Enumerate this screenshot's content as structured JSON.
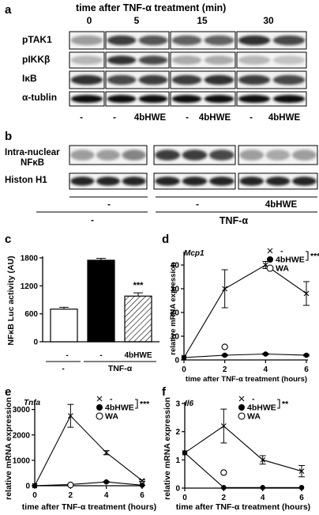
{
  "panel_a": {
    "letter": "a",
    "header": "time after TNF-α treatment (min)",
    "times": [
      "0",
      "5",
      "15",
      "30"
    ],
    "rows": [
      "pTAK1",
      "pIKKβ",
      "IκB",
      "α-tublin"
    ],
    "lane_labels": [
      "-",
      "-",
      "4bHWE",
      "-",
      "4bHWE",
      "-",
      "4bHWE"
    ]
  },
  "panel_b": {
    "letter": "b",
    "rows": [
      "Intra-nuclear NFκB",
      "Histon H1"
    ],
    "row1_lines": [
      "Intra-nuclear",
      "NFκB"
    ],
    "treat_labels": [
      "-",
      "-",
      "4bHWE"
    ],
    "tnf_labels": [
      "-",
      "TNF-α"
    ]
  },
  "panel_c": {
    "letter": "c",
    "chart_data": {
      "type": "bar",
      "ylabel": "NFκB Luc activity (AU)",
      "ylim": [
        0,
        1800
      ],
      "yticks": [
        "0",
        "600",
        "1200",
        "1800"
      ],
      "values": [
        700,
        1750,
        980
      ],
      "errors": [
        40,
        40,
        70
      ],
      "fills": [
        "#ffffff",
        "#000000",
        "hatch"
      ],
      "treat_labels": [
        "-",
        "-",
        "4bHWE"
      ],
      "tnf_labels": [
        "-",
        "TNF-α"
      ],
      "significance": "***"
    }
  },
  "panel_d": {
    "letter": "d",
    "chart_data": {
      "type": "line",
      "gene": "Mcp1",
      "xlabel": "time after TNF-α treatment (hours)",
      "ylabel": "relative mRNA expression",
      "x": [
        0,
        2,
        4,
        6
      ],
      "xlim": [
        0,
        6
      ],
      "ylim": [
        0,
        45
      ],
      "yticks": [
        "0",
        "10",
        "20",
        "30",
        "40"
      ],
      "xticks": [
        "0",
        "2",
        "4",
        "6"
      ],
      "series": [
        {
          "name": "-",
          "values": [
            1,
            30,
            40,
            28
          ],
          "errors": [
            0,
            8,
            1.5,
            5
          ]
        },
        {
          "name": "4bHWE",
          "values": [
            1,
            2,
            2.5,
            2
          ],
          "errors": [
            0,
            0.3,
            0.3,
            0.3
          ]
        }
      ],
      "wa": {
        "name": "WA",
        "x": 2,
        "y": 5.5
      },
      "significance": "***"
    }
  },
  "panel_e": {
    "letter": "e",
    "chart_data": {
      "type": "line",
      "gene": "Tnfa",
      "xlabel": "time after TNF-α treatment (hours)",
      "ylabel": "relative mRNA expression",
      "x": [
        0,
        2,
        4,
        6
      ],
      "xlim": [
        0,
        6
      ],
      "ylim": [
        0,
        3300
      ],
      "yticks": [
        "0",
        "1000",
        "2000",
        "3000"
      ],
      "xticks": [
        "0",
        "2",
        "4",
        "6"
      ],
      "series": [
        {
          "name": "-",
          "values": [
            1,
            2750,
            1300,
            200
          ],
          "errors": [
            0,
            450,
            80,
            30
          ]
        },
        {
          "name": "4bHWE",
          "values": [
            1,
            50,
            150,
            20
          ],
          "errors": [
            0,
            10,
            20,
            5
          ]
        }
      ],
      "wa": {
        "name": "WA",
        "x": 2,
        "y": 30
      },
      "significance": "***"
    }
  },
  "panel_f": {
    "letter": "f",
    "chart_data": {
      "type": "line",
      "gene": "Il6",
      "xlabel": "time after TNF-α treatment (hours)",
      "ylabel": "relative mRNA expression",
      "x": [
        0,
        2,
        4,
        6
      ],
      "xlim": [
        0,
        6
      ],
      "ylim": [
        0,
        3
      ],
      "yticks": [
        "0",
        "1",
        "2",
        "3"
      ],
      "xticks": [
        "0",
        "2",
        "4",
        "6"
      ],
      "series": [
        {
          "name": "-",
          "values": [
            1.25,
            2.2,
            1.0,
            0.6
          ],
          "errors": [
            0,
            0.6,
            0.15,
            0.2
          ]
        },
        {
          "name": "4bHWE",
          "values": [
            1.25,
            0.02,
            0.02,
            0.02
          ],
          "errors": [
            0,
            0,
            0,
            0
          ]
        }
      ],
      "wa": {
        "name": "WA",
        "x": 2,
        "y": 0.55
      },
      "significance": "**"
    }
  }
}
